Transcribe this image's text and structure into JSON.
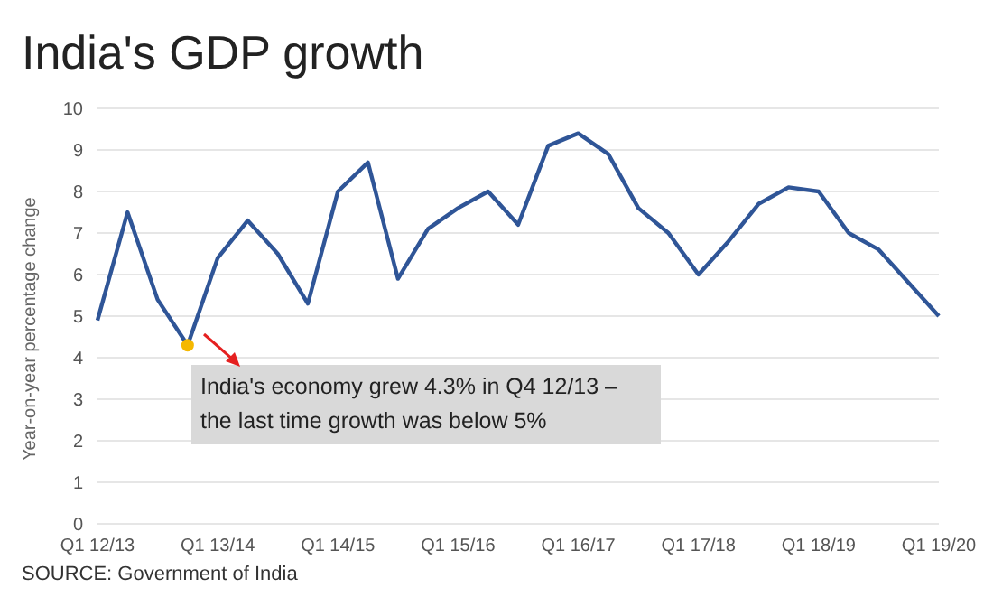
{
  "chart_data": {
    "type": "line",
    "title": "India's GDP growth",
    "ylabel": "Year-on-year percentage change",
    "categories": [
      "Q1 12/13",
      null,
      null,
      null,
      "Q1 13/14",
      null,
      null,
      null,
      "Q1 14/15",
      null,
      null,
      null,
      "Q1 15/16",
      null,
      null,
      null,
      "Q1 16/17",
      null,
      null,
      null,
      "Q1 17/18",
      null,
      null,
      null,
      "Q1 18/19",
      null,
      null,
      null,
      "Q1 19/20"
    ],
    "series": [
      {
        "color": "#2f5597",
        "values": [
          4.9,
          7.5,
          5.4,
          4.3,
          6.4,
          7.3,
          6.5,
          5.3,
          8.0,
          8.7,
          5.9,
          7.1,
          7.6,
          8.0,
          7.2,
          9.1,
          9.4,
          8.9,
          7.6,
          7.0,
          6.0,
          6.8,
          7.7,
          8.1,
          8.0,
          7.0,
          6.6,
          5.8,
          5.0
        ]
      },
      {
        "type": "scatter",
        "marker": "circle",
        "color": "#f5b800",
        "values": [
          null,
          null,
          null,
          4.3,
          null,
          null,
          null,
          null,
          null,
          null,
          null,
          null,
          null,
          null,
          null,
          null,
          null,
          null,
          null,
          null,
          null,
          null,
          null,
          null,
          null,
          null,
          null,
          null,
          null
        ]
      }
    ],
    "ylim": [
      0,
      10
    ],
    "yticks": [
      0,
      1,
      2,
      3,
      4,
      5,
      6,
      7,
      8,
      9,
      10
    ],
    "grid": "y",
    "marker": "none",
    "line_style": "solid",
    "legend": false,
    "annotations": [
      "India's economy grew 4.3% in Q4 12/13 – the last time growth was below 5%",
      "SOURCE: Government of India"
    ]
  }
}
